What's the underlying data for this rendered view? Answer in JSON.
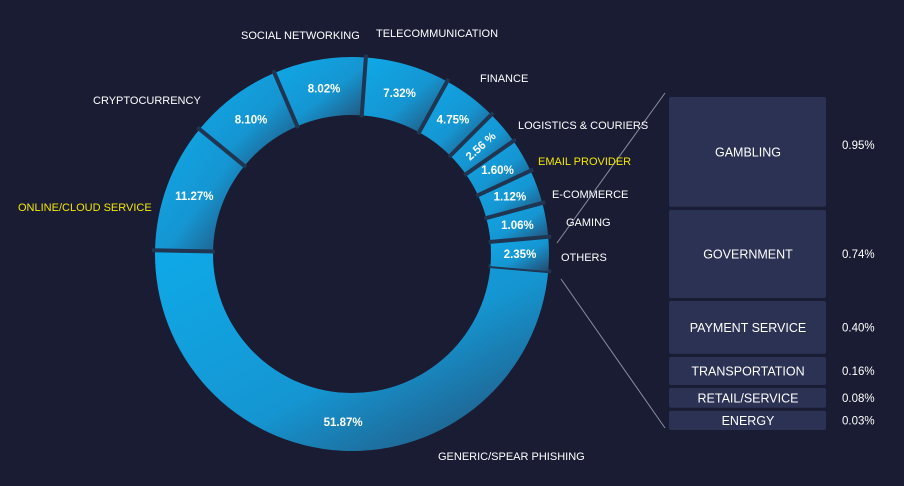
{
  "chart_data": {
    "type": "pie",
    "slices": [
      {
        "label": "GENERIC/SPEAR PHISHING",
        "value": 51.87,
        "value_label": "51.87%"
      },
      {
        "label": "ONLINE/CLOUD SERVICE",
        "value": 11.27,
        "value_label": "11.27%",
        "highlight": true
      },
      {
        "label": "CRYPTOCURRENCY",
        "value": 8.1,
        "value_label": "8.10%"
      },
      {
        "label": "SOCIAL NETWORKING",
        "value": 8.02,
        "value_label": "8.02%"
      },
      {
        "label": "TELECOMMUNICATION",
        "value": 7.32,
        "value_label": "7.32%"
      },
      {
        "label": "FINANCE",
        "value": 4.75,
        "value_label": "4.75%"
      },
      {
        "label": "LOGISTICS & COURIERS",
        "value": 2.56,
        "value_label": "2.56 %"
      },
      {
        "label": "EMAIL PROVIDER",
        "value": 1.6,
        "value_label": "1.60%",
        "highlight": true
      },
      {
        "label": "E-COMMERCE",
        "value": 1.12,
        "value_label": "1.12%"
      },
      {
        "label": "GAMING",
        "value": 1.06,
        "value_label": "1.06%"
      },
      {
        "label": "OTHERS",
        "value": 2.35,
        "value_label": "2.35%"
      }
    ],
    "others_breakdown": [
      {
        "label": "GAMBLING",
        "value": 0.95,
        "value_label": "0.95%"
      },
      {
        "label": "GOVERNMENT",
        "value": 0.74,
        "value_label": "0.74%"
      },
      {
        "label": "PAYMENT SERVICE",
        "value": 0.4,
        "value_label": "0.40%"
      },
      {
        "label": "TRANSPORTATION",
        "value": 0.16,
        "value_label": "0.16%"
      },
      {
        "label": "RETAIL/SERVICE",
        "value": 0.08,
        "value_label": "0.08%"
      },
      {
        "label": "ENERGY",
        "value": 0.03,
        "value_label": "0.03%"
      }
    ]
  },
  "colors": {
    "background": "#191c33",
    "ring_light": "#0fa9e8",
    "ring_dark": "#25496d",
    "highlight_text": "#f2e700",
    "box_fill": "#2b3253",
    "connector": "#8a8fa3"
  }
}
